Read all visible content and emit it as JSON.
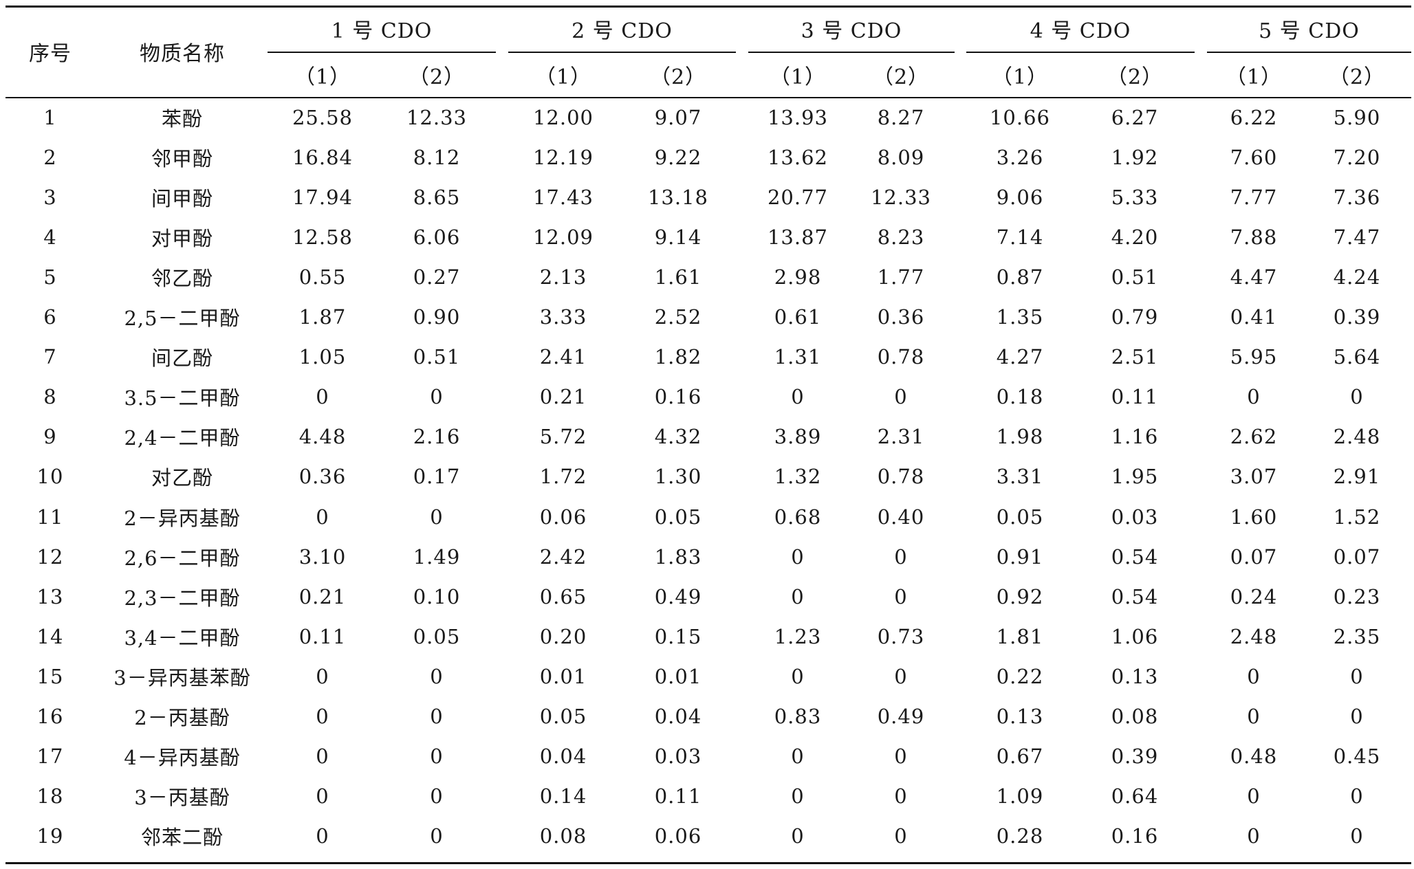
{
  "table": {
    "col_no": "序号",
    "col_name": "物质名称",
    "groups": [
      "1 号 CDO",
      "2 号 CDO",
      "3 号 CDO",
      "4 号 CDO",
      "5 号 CDO"
    ],
    "sub_labels": [
      "（1）",
      "（2）",
      "（1）",
      "（2）",
      "（1）",
      "（2）",
      "（1）",
      "（2）",
      "（1）",
      "（2）"
    ],
    "rows": [
      {
        "no": "1",
        "name": "苯酚",
        "vals": [
          "25.58",
          "12.33",
          "12.00",
          "9.07",
          "13.93",
          "8.27",
          "10.66",
          "6.27",
          "6.22",
          "5.90"
        ]
      },
      {
        "no": "2",
        "name": "邻甲酚",
        "vals": [
          "16.84",
          "8.12",
          "12.19",
          "9.22",
          "13.62",
          "8.09",
          "3.26",
          "1.92",
          "7.60",
          "7.20"
        ]
      },
      {
        "no": "3",
        "name": "间甲酚",
        "vals": [
          "17.94",
          "8.65",
          "17.43",
          "13.18",
          "20.77",
          "12.33",
          "9.06",
          "5.33",
          "7.77",
          "7.36"
        ]
      },
      {
        "no": "4",
        "name": "对甲酚",
        "vals": [
          "12.58",
          "6.06",
          "12.09",
          "9.14",
          "13.87",
          "8.23",
          "7.14",
          "4.20",
          "7.88",
          "7.47"
        ]
      },
      {
        "no": "5",
        "name": "邻乙酚",
        "vals": [
          "0.55",
          "0.27",
          "2.13",
          "1.61",
          "2.98",
          "1.77",
          "0.87",
          "0.51",
          "4.47",
          "4.24"
        ]
      },
      {
        "no": "6",
        "name": "2,5－二甲酚",
        "vals": [
          "1.87",
          "0.90",
          "3.33",
          "2.52",
          "0.61",
          "0.36",
          "1.35",
          "0.79",
          "0.41",
          "0.39"
        ]
      },
      {
        "no": "7",
        "name": "间乙酚",
        "vals": [
          "1.05",
          "0.51",
          "2.41",
          "1.82",
          "1.31",
          "0.78",
          "4.27",
          "2.51",
          "5.95",
          "5.64"
        ]
      },
      {
        "no": "8",
        "name": "3.5－二甲酚",
        "vals": [
          "0",
          "0",
          "0.21",
          "0.16",
          "0",
          "0",
          "0.18",
          "0.11",
          "0",
          "0"
        ]
      },
      {
        "no": "9",
        "name": "2,4－二甲酚",
        "vals": [
          "4.48",
          "2.16",
          "5.72",
          "4.32",
          "3.89",
          "2.31",
          "1.98",
          "1.16",
          "2.62",
          "2.48"
        ]
      },
      {
        "no": "10",
        "name": "对乙酚",
        "vals": [
          "0.36",
          "0.17",
          "1.72",
          "1.30",
          "1.32",
          "0.78",
          "3.31",
          "1.95",
          "3.07",
          "2.91"
        ]
      },
      {
        "no": "11",
        "name": "2－异丙基酚",
        "vals": [
          "0",
          "0",
          "0.06",
          "0.05",
          "0.68",
          "0.40",
          "0.05",
          "0.03",
          "1.60",
          "1.52"
        ]
      },
      {
        "no": "12",
        "name": "2,6－二甲酚",
        "vals": [
          "3.10",
          "1.49",
          "2.42",
          "1.83",
          "0",
          "0",
          "0.91",
          "0.54",
          "0.07",
          "0.07"
        ]
      },
      {
        "no": "13",
        "name": "2,3－二甲酚",
        "vals": [
          "0.21",
          "0.10",
          "0.65",
          "0.49",
          "0",
          "0",
          "0.92",
          "0.54",
          "0.24",
          "0.23"
        ]
      },
      {
        "no": "14",
        "name": "3,4－二甲酚",
        "vals": [
          "0.11",
          "0.05",
          "0.20",
          "0.15",
          "1.23",
          "0.73",
          "1.81",
          "1.06",
          "2.48",
          "2.35"
        ]
      },
      {
        "no": "15",
        "name": "3－异丙基苯酚",
        "vals": [
          "0",
          "0",
          "0.01",
          "0.01",
          "0",
          "0",
          "0.22",
          "0.13",
          "0",
          "0"
        ]
      },
      {
        "no": "16",
        "name": "2－丙基酚",
        "vals": [
          "0",
          "0",
          "0.05",
          "0.04",
          "0.83",
          "0.49",
          "0.13",
          "0.08",
          "0",
          "0"
        ]
      },
      {
        "no": "17",
        "name": "4－异丙基酚",
        "vals": [
          "0",
          "0",
          "0.04",
          "0.03",
          "0",
          "0",
          "0.67",
          "0.39",
          "0.48",
          "0.45"
        ]
      },
      {
        "no": "18",
        "name": "3－丙基酚",
        "vals": [
          "0",
          "0",
          "0.14",
          "0.11",
          "0",
          "0",
          "1.09",
          "0.64",
          "0",
          "0"
        ]
      },
      {
        "no": "19",
        "name": "邻苯二酚",
        "vals": [
          "0",
          "0",
          "0.08",
          "0.06",
          "0",
          "0",
          "0.28",
          "0.16",
          "0",
          "0"
        ]
      }
    ]
  }
}
